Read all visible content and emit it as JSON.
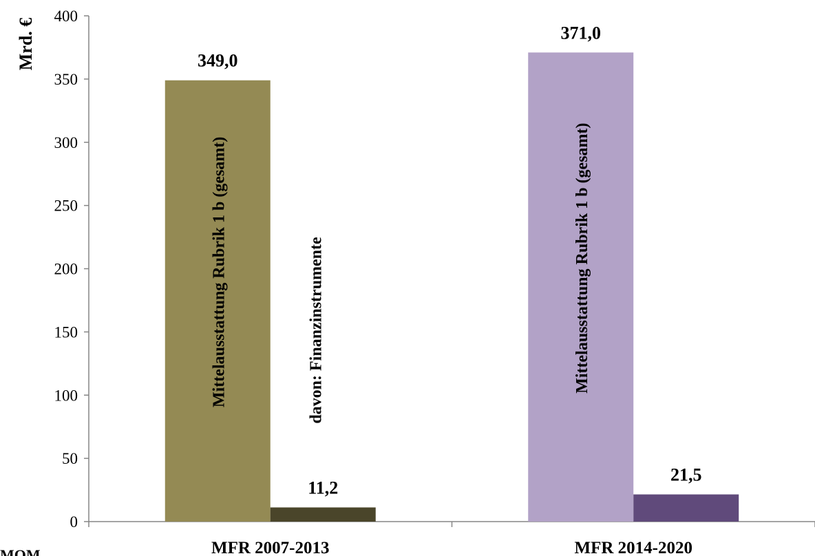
{
  "chart_data": {
    "type": "bar",
    "ylabel": "Mrd. €",
    "ylim": [
      0,
      400
    ],
    "yticks": [
      0,
      50,
      100,
      150,
      200,
      250,
      300,
      350,
      400
    ],
    "grid": false,
    "categories": [
      "MFR 2007-2013",
      "MFR 2014-2020"
    ],
    "series": [
      {
        "name": "Mittelausstattung Rubrik 1 b (gesamt)",
        "values": [
          349.0,
          371.0
        ],
        "value_labels": [
          "349,0",
          "371,0"
        ],
        "colors": [
          "#948a54",
          "#b2a2c7"
        ]
      },
      {
        "name": "davon: Finanzinstrumente",
        "values": [
          11.2,
          21.5
        ],
        "value_labels": [
          "11,2",
          "21,5"
        ],
        "colors": [
          "#4a452a",
          "#604a7b"
        ]
      }
    ]
  },
  "footer_partial_text": "MOM"
}
